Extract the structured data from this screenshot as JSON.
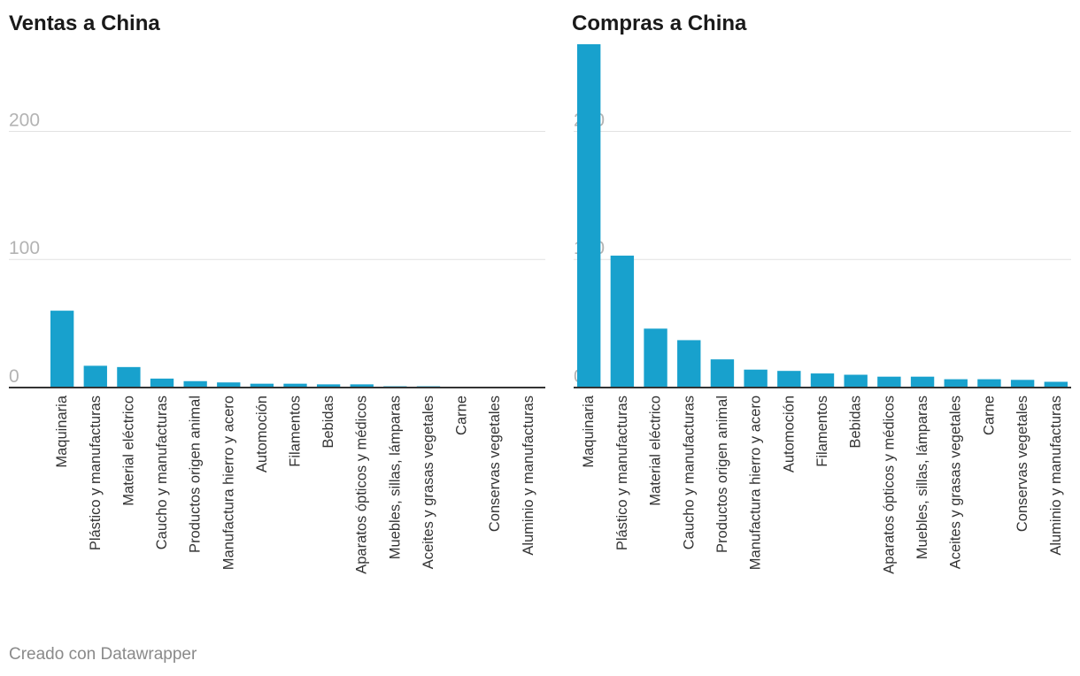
{
  "footer": "Creado con Datawrapper",
  "chart_data": [
    {
      "type": "bar",
      "title": "Ventas a China",
      "categories": [
        "Maquinaria",
        "Plástico y manufacturas",
        "Material eléctrico",
        "Caucho y manufacturas",
        "Productos origen animal",
        "Manufactura hierro y acero",
        "Automoción",
        "Filamentos",
        "Bebidas",
        "Aparatos ópticos y médicos",
        "Muebles, sillas, lámparas",
        "Aceites y grasas vegetales",
        "Carne",
        "Conservas vegetales",
        "Aluminio y manufacturas"
      ],
      "values": [
        60,
        17,
        16,
        7,
        5,
        4,
        3,
        3,
        2.5,
        2.5,
        1,
        1,
        0,
        0,
        0
      ],
      "yticks": [
        0,
        100,
        200
      ],
      "ylim": [
        0,
        268
      ],
      "grid": true,
      "color": "#18a1cd"
    },
    {
      "type": "bar",
      "title": "Compras a China",
      "categories": [
        "Maquinaria",
        "Plástico y manufacturas",
        "Material eléctrico",
        "Caucho y manufacturas",
        "Productos origen animal",
        "Manufactura hierro y acero",
        "Automoción",
        "Filamentos",
        "Bebidas",
        "Aparatos ópticos y médicos",
        "Muebles, sillas, lámparas",
        "Aceites y grasas vegetales",
        "Carne",
        "Conservas vegetales",
        "Aluminio y manufacturas"
      ],
      "values": [
        268,
        103,
        46,
        37,
        22,
        14,
        13,
        11,
        10,
        8.5,
        8.5,
        6.5,
        6.5,
        6,
        4.5
      ],
      "yticks": [
        0,
        100,
        200
      ],
      "ylim": [
        0,
        268
      ],
      "grid": true,
      "color": "#18a1cd"
    }
  ]
}
